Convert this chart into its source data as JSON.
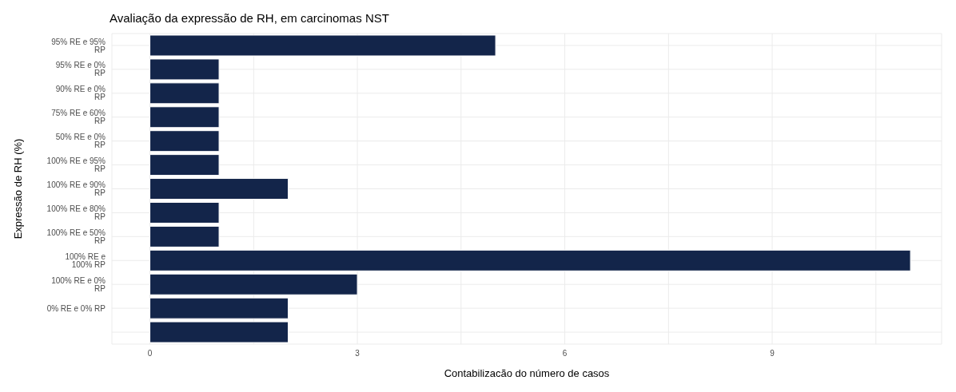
{
  "chart_data": {
    "type": "bar",
    "orientation": "horizontal",
    "title": "Avaliação da expressão de RH, em carcinomas NST",
    "xlabel": "Contabilizacão do número de casos",
    "ylabel": "Expressão de RH (%)",
    "categories": [
      "95% RE e 95% RP",
      "95% RE e 0% RP",
      "90% RE e 0% RP",
      "75% RE e 60% RP",
      "50% RE e 0% RP",
      "100% RE e 95% RP",
      "100% RE e 90% RP",
      "100% RE e 80% RP",
      "100% RE e 50% RP",
      "100% RE e 100% RP",
      "100% RE e 0% RP",
      "0% RE e 0% RP",
      null
    ],
    "values": [
      5,
      1,
      1,
      1,
      1,
      1,
      2,
      1,
      1,
      11,
      3,
      2,
      2
    ],
    "color": "#13254a",
    "xlim": [
      -0.55,
      11.45
    ],
    "xticks": [
      0,
      {
        "value": 1.5,
        "label": null
      },
      3,
      {
        "value": 4.5,
        "label": null
      },
      6,
      {
        "value": 7.5,
        "label": null
      },
      9,
      {
        "value": 10.5,
        "label": null
      }
    ],
    "grid": true
  }
}
